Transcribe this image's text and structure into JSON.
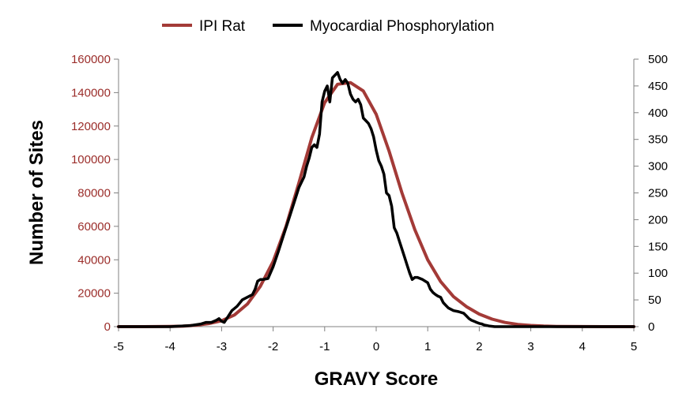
{
  "chart_data": {
    "type": "line",
    "title": "",
    "xlabel": "GRAVY Score",
    "ylabel": "Number of Sites",
    "y2label": "",
    "xlim": [
      -5,
      5
    ],
    "ylim": [
      0,
      160000
    ],
    "y2lim": [
      0,
      500
    ],
    "x_ticks": [
      "-5",
      "-4",
      "-3",
      "-2",
      "-1",
      "0",
      "1",
      "2",
      "3",
      "4",
      "5"
    ],
    "y_ticks": [
      "0",
      "20000",
      "40000",
      "60000",
      "80000",
      "100000",
      "120000",
      "140000",
      "160000"
    ],
    "y2_ticks": [
      "0",
      "50",
      "100",
      "150",
      "200",
      "250",
      "300",
      "350",
      "400",
      "450",
      "500"
    ],
    "grid": false,
    "legend_position": "top-center",
    "series": [
      {
        "name": "IPI Rat",
        "axis": "left",
        "color": "#A33A37",
        "x": [
          -5,
          -4.5,
          -4,
          -3.75,
          -3.5,
          -3.25,
          -3,
          -2.75,
          -2.5,
          -2.25,
          -2,
          -1.75,
          -1.5,
          -1.25,
          -1,
          -0.75,
          -0.5,
          -0.25,
          0,
          0.25,
          0.5,
          0.75,
          1,
          1.25,
          1.5,
          1.75,
          2,
          2.25,
          2.5,
          2.75,
          3,
          3.25,
          3.5,
          4,
          4.5,
          5
        ],
        "y": [
          0,
          0,
          150,
          300,
          800,
          1800,
          3500,
          7000,
          13500,
          24000,
          39000,
          60000,
          86000,
          113000,
          134000,
          145000,
          146000,
          141000,
          127000,
          105000,
          80000,
          58000,
          40000,
          27000,
          18000,
          12000,
          7500,
          4500,
          2500,
          1300,
          700,
          350,
          150,
          50,
          0,
          0
        ]
      },
      {
        "name": "Myocardial Phosphorylation",
        "axis": "right",
        "color": "#000000",
        "x": [
          -5,
          -4.5,
          -4,
          -3.6,
          -3.4,
          -3.3,
          -3.2,
          -3.1,
          -3.05,
          -3.0,
          -2.95,
          -2.9,
          -2.8,
          -2.7,
          -2.6,
          -2.5,
          -2.4,
          -2.35,
          -2.3,
          -2.25,
          -2.2,
          -2.1,
          -2.0,
          -1.9,
          -1.8,
          -1.7,
          -1.6,
          -1.5,
          -1.45,
          -1.4,
          -1.35,
          -1.3,
          -1.25,
          -1.2,
          -1.15,
          -1.1,
          -1.05,
          -1.0,
          -0.95,
          -0.9,
          -0.85,
          -0.8,
          -0.75,
          -0.7,
          -0.65,
          -0.6,
          -0.55,
          -0.5,
          -0.45,
          -0.4,
          -0.35,
          -0.3,
          -0.25,
          -0.2,
          -0.15,
          -0.1,
          -0.05,
          0,
          0.05,
          0.1,
          0.15,
          0.2,
          0.25,
          0.3,
          0.35,
          0.4,
          0.45,
          0.5,
          0.55,
          0.6,
          0.65,
          0.7,
          0.75,
          0.8,
          0.9,
          1.0,
          1.05,
          1.1,
          1.15,
          1.2,
          1.25,
          1.3,
          1.35,
          1.4,
          1.5,
          1.6,
          1.7,
          1.75,
          1.8,
          1.85,
          1.9,
          1.95,
          2.0,
          2.05,
          2.1,
          2.15,
          2.2,
          2.3,
          2.4,
          2.5,
          2.55,
          2.6,
          2.7,
          2.8,
          2.9,
          3.0,
          3.1,
          3.2,
          3.3,
          3.4,
          3.6,
          3.8,
          4.0,
          4.5,
          5
        ],
        "y": [
          0,
          0,
          0,
          2,
          5,
          8,
          8,
          12,
          15,
          10,
          8,
          15,
          30,
          38,
          50,
          55,
          60,
          70,
          85,
          88,
          88,
          90,
          112,
          140,
          170,
          200,
          230,
          260,
          270,
          280,
          300,
          315,
          335,
          340,
          335,
          360,
          420,
          440,
          450,
          420,
          465,
          470,
          475,
          462,
          455,
          462,
          455,
          435,
          425,
          420,
          425,
          415,
          390,
          385,
          380,
          370,
          355,
          330,
          310,
          300,
          285,
          250,
          245,
          225,
          185,
          175,
          160,
          145,
          130,
          115,
          100,
          88,
          92,
          92,
          88,
          82,
          70,
          64,
          60,
          57,
          55,
          45,
          40,
          35,
          30,
          28,
          25,
          20,
          15,
          12,
          10,
          8,
          6,
          5,
          3,
          2,
          1,
          0,
          0,
          0,
          0,
          0,
          0,
          0,
          0,
          0,
          0,
          0,
          0,
          0,
          0,
          0,
          0,
          0,
          0
        ]
      }
    ]
  }
}
